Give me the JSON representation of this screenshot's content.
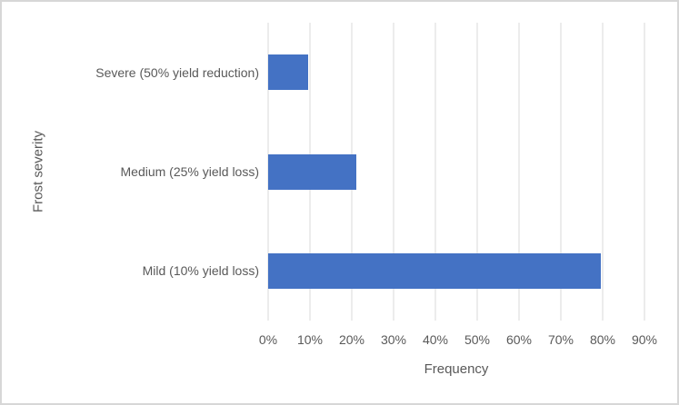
{
  "chart_data": {
    "type": "bar",
    "orientation": "horizontal",
    "category_order": "top-to-bottom",
    "categories": [
      "Severe (50% yield reduction)",
      "Medium (25% yield loss)",
      "Mild (10% yield loss)"
    ],
    "values": [
      9.5,
      21,
      79.5
    ],
    "value_unit": "%",
    "xlabel": "Frequency",
    "ylabel": "Frost severity",
    "xlim": [
      0,
      90
    ],
    "x_ticks": [
      "0%",
      "10%",
      "20%",
      "30%",
      "40%",
      "50%",
      "60%",
      "70%",
      "80%",
      "90%"
    ],
    "grid": true,
    "legend": false,
    "colors": {
      "bar": "#4472c4",
      "gridline": "#d9d9d9",
      "text": "#595959",
      "frame_border": "#d7d7d7",
      "background": "#ffffff"
    }
  }
}
